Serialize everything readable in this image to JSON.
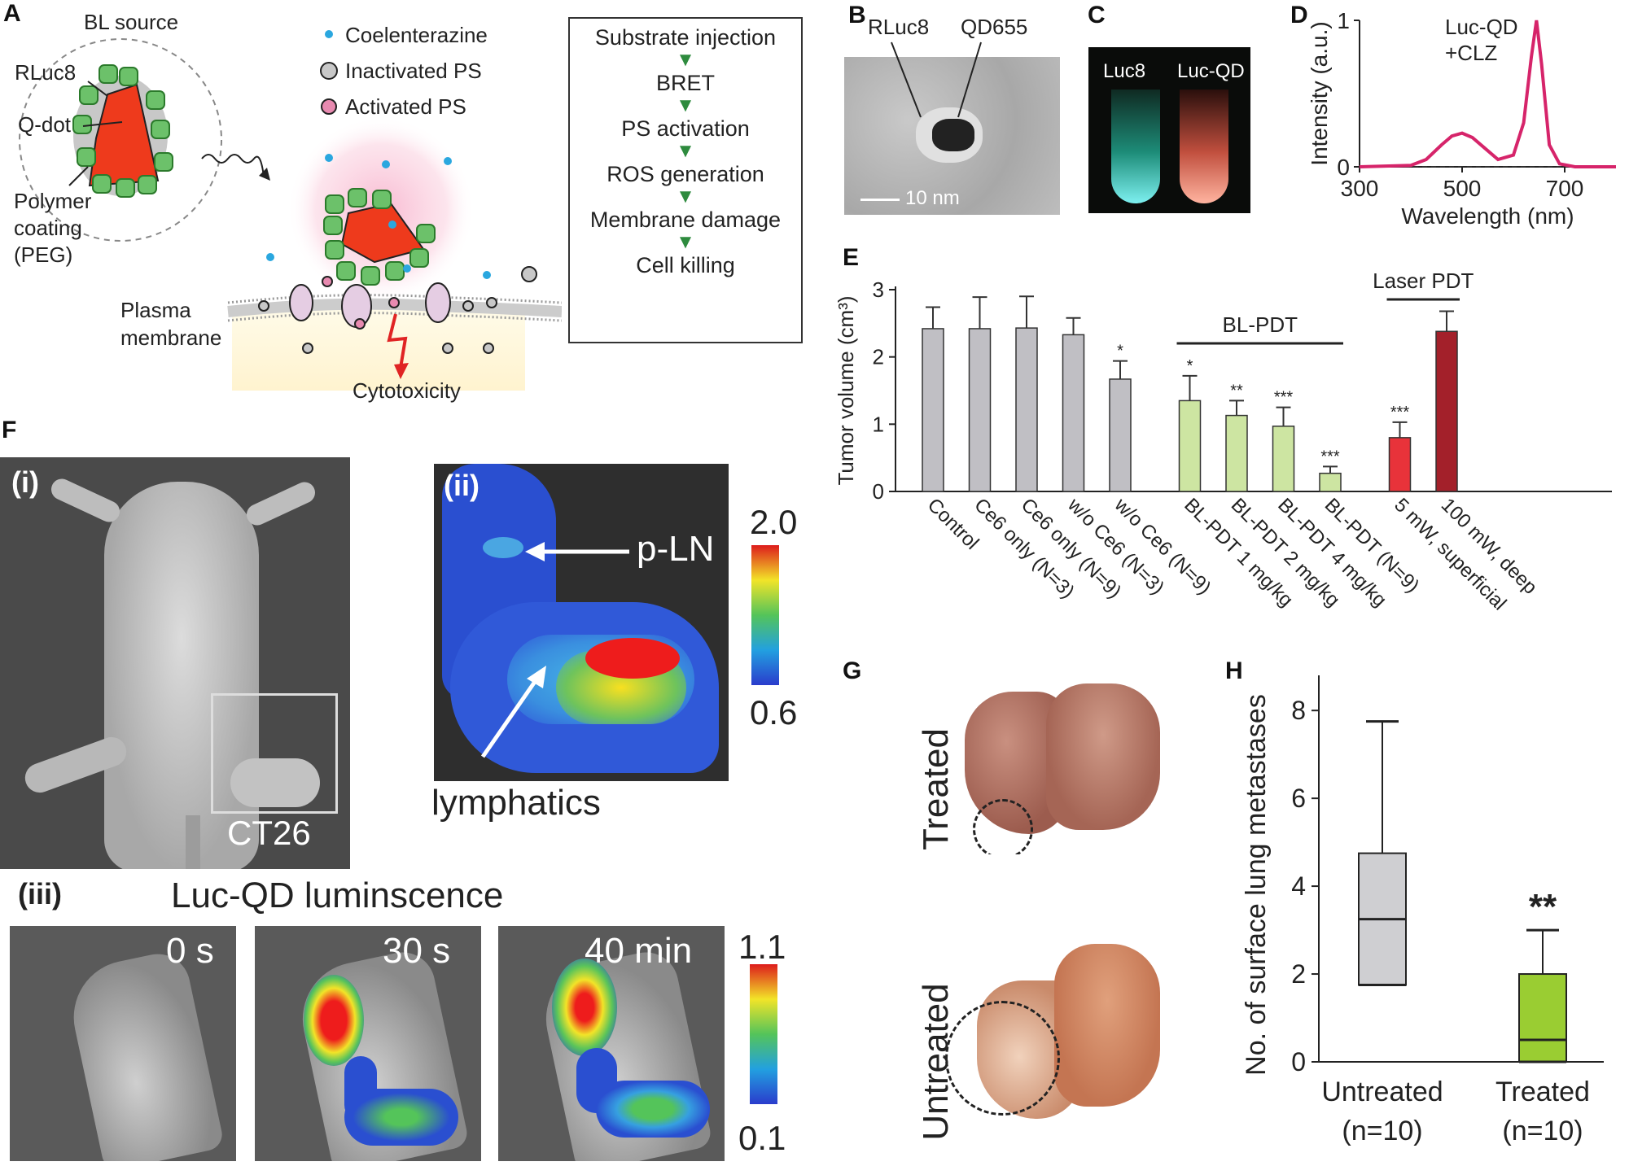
{
  "panels": {
    "A": {
      "letter": "A",
      "bl_source": "BL source",
      "rluc8": "RLuc8",
      "qdot": "Q-dot",
      "polymer": [
        "Polymer",
        "coating",
        "(PEG)"
      ],
      "legend": [
        "Coelenterazine",
        "Inactivated PS",
        "Activated PS"
      ],
      "plasma": [
        "Plasma",
        "membrane"
      ],
      "cytotoxicity": "Cytotoxicity",
      "flow": [
        "Substrate injection",
        "BRET",
        "PS activation",
        "ROS generation",
        "Membrane damage",
        "Cell killing"
      ],
      "colors": {
        "qdot": "#ee3a1c",
        "rluc": "#6cc16a",
        "coelenterazine": "#2aa7df",
        "activated_ps": "#e88ab0",
        "inactive_ps": "#c8c8c8"
      }
    },
    "B": {
      "letter": "B",
      "rluc8": "RLuc8",
      "qd": "QD655",
      "scale": "10 nm"
    },
    "C": {
      "letter": "C",
      "tube1": "Luc8",
      "tube2": "Luc-QD"
    },
    "D": {
      "letter": "D",
      "legend": [
        "Luc-QD",
        "+CLZ"
      ]
    },
    "F": {
      "letter": "F",
      "i": "(i)",
      "ct26": "CT26",
      "ii": "(ii)",
      "pln": "p-LN",
      "lymph": "lymphatics",
      "scale_ii": [
        "2.0",
        "0.6"
      ],
      "iii": "(iii)",
      "iii_title": "Luc-QD luminscence",
      "times": [
        "0 s",
        "30 s",
        "40 min"
      ],
      "scale_iii": [
        "1.1",
        "0.1"
      ]
    },
    "G": {
      "letter": "G",
      "treated": "Treated",
      "untreated": "Untreated"
    }
  },
  "chart_data": [
    {
      "id": "D",
      "type": "line",
      "title": "",
      "xlabel": "Wavelength (nm)",
      "ylabel": "Intensity (a.u.)",
      "xlim": [
        300,
        800
      ],
      "ylim": [
        0,
        1
      ],
      "xticks": [
        300,
        500,
        700
      ],
      "yticks": [
        0,
        1
      ],
      "series": [
        {
          "name": "Luc-QD +CLZ",
          "color": "#d6246a",
          "x": [
            300,
            400,
            430,
            460,
            480,
            500,
            520,
            540,
            570,
            600,
            620,
            635,
            645,
            655,
            670,
            690,
            720,
            800
          ],
          "y": [
            0,
            0.01,
            0.05,
            0.15,
            0.21,
            0.23,
            0.2,
            0.14,
            0.05,
            0.08,
            0.3,
            0.75,
            1.0,
            0.7,
            0.15,
            0.02,
            0,
            0
          ]
        }
      ]
    },
    {
      "id": "E",
      "letter": "E",
      "type": "bar",
      "ylabel": "Tumor volume (cm³)",
      "ylim": [
        0,
        3
      ],
      "yticks": [
        0,
        1,
        2,
        3
      ],
      "categories": [
        "Control",
        "Ce6 only (N=3)",
        "Ce6 only (N=9)",
        "w/o Ce6 (N=3)",
        "w/o Ce6 (N=9)",
        "BL-PDT 1 mg/kg",
        "BL-PDT 2 mg/kg",
        "BL-PDT 4 mg/kg",
        "BL-PDT (N=9)",
        "5 mW, superficial",
        "100 mW, deep"
      ],
      "values": [
        2.42,
        2.42,
        2.43,
        2.33,
        1.67,
        1.35,
        1.13,
        0.97,
        0.27,
        0.8,
        2.38
      ],
      "errors": [
        0.32,
        0.47,
        0.47,
        0.25,
        0.27,
        0.37,
        0.22,
        0.28,
        0.1,
        0.23,
        0.3
      ],
      "significance": [
        "",
        "",
        "",
        "",
        "*",
        "*",
        "**",
        "***",
        "***",
        "***",
        ""
      ],
      "colors": [
        "#c0bfc4",
        "#c0bfc4",
        "#c0bfc4",
        "#c0bfc4",
        "#c0bfc4",
        "#cde5a2",
        "#cde5a2",
        "#cde5a2",
        "#cde5a2",
        "#e8333a",
        "#a3202a"
      ],
      "groups": [
        {
          "label": "BL-PDT",
          "from": 5,
          "to": 8
        },
        {
          "label": "Laser PDT",
          "from": 9,
          "to": 10
        }
      ]
    },
    {
      "id": "H",
      "letter": "H",
      "type": "box",
      "ylabel": "No. of surface lung metastases",
      "ylim": [
        0,
        8.8
      ],
      "yticks": [
        0,
        2,
        4,
        6,
        8
      ],
      "categories": [
        "Untreated",
        "Treated"
      ],
      "sublabels": [
        "(n=10)",
        "(n=10)"
      ],
      "boxes": [
        {
          "min": 1.75,
          "q1": 1.75,
          "median": 3.25,
          "q3": 4.75,
          "max": 7.75,
          "color": "#cfcfd2"
        },
        {
          "min": 0,
          "q1": 0,
          "median": 0.5,
          "q3": 2.0,
          "max": 3.0,
          "color": "#9acd32"
        }
      ],
      "significance": [
        "",
        "**"
      ]
    }
  ]
}
